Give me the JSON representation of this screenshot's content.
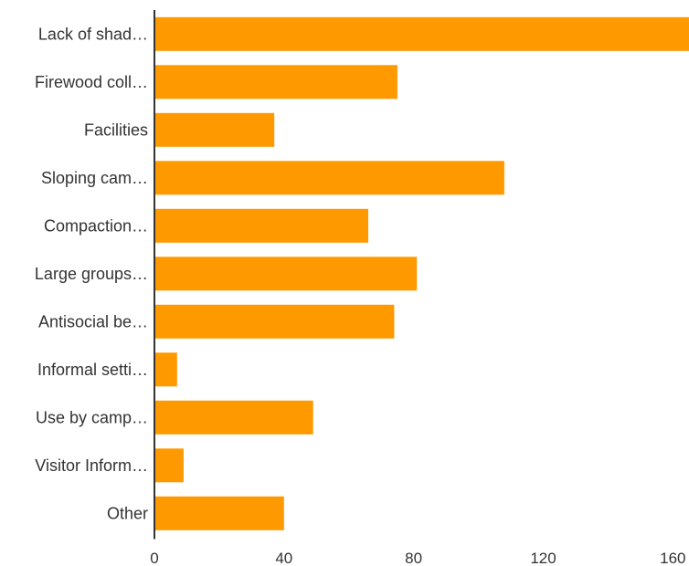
{
  "chart_data": {
    "type": "bar",
    "orientation": "horizontal",
    "categories": [
      "Lack of shad…",
      "Firewood coll…",
      "Facilities",
      "Sloping cam…",
      "Compaction…",
      "Large groups…",
      "Antisocial be…",
      "Informal setti…",
      "Use by camp…",
      "Visitor Inform…",
      "Other"
    ],
    "values": [
      167,
      75,
      37,
      108,
      66,
      81,
      74,
      7,
      49,
      9,
      40
    ],
    "xlim": [
      0,
      165
    ],
    "xticks": [
      0,
      40,
      80,
      120,
      160
    ],
    "title": "",
    "xlabel": "",
    "ylabel": "",
    "grid": false,
    "bar_color": "#ff9900",
    "axis_color": "#333333"
  }
}
